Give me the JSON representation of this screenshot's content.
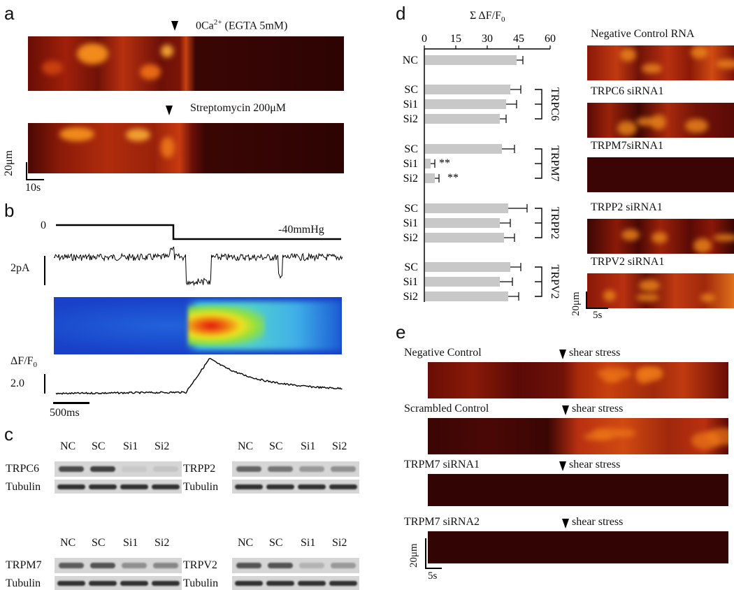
{
  "panel_a": {
    "letter": "a",
    "k1_label_pre": "0Ca",
    "k1_label_sup": "2+",
    "k1_label_post": " (EGTA 5mM)",
    "k2_label": "Streptomycin 200μM",
    "scale_y": "20μm",
    "scale_x": "10s"
  },
  "panel_b": {
    "letter": "b",
    "pressure_start": "0",
    "pressure_end": "-40mmHg",
    "current_scale": "2pA",
    "ratio_label": "ΔF/F",
    "ratio_sub": "0",
    "ratio_scale": "2.0",
    "time_scale": "500ms"
  },
  "panel_c": {
    "letter": "c",
    "columns": [
      "NC",
      "SC",
      "Si1",
      "Si2"
    ],
    "blots": [
      {
        "target": "TRPC6",
        "loading": "Tubulin",
        "levels": [
          0.8,
          0.85,
          0.08,
          0.1
        ]
      },
      {
        "target": "TRPP2",
        "loading": "Tubulin",
        "levels": [
          0.65,
          0.55,
          0.35,
          0.4
        ]
      },
      {
        "target": "TRPM7",
        "loading": "Tubulin",
        "levels": [
          0.7,
          0.75,
          0.4,
          0.45
        ]
      },
      {
        "target": "TRPV2",
        "loading": "Tubulin",
        "levels": [
          0.75,
          0.75,
          0.2,
          0.35
        ]
      }
    ]
  },
  "panel_d": {
    "letter": "d",
    "axis_title": "Σ ΔF/F",
    "axis_title_sub": "0",
    "ticks": [
      "0",
      "15",
      "30",
      "45",
      "60"
    ],
    "sig_mark": "**",
    "kymo_titles": [
      "Negative Control RNA",
      "TRPC6 siRNA1",
      "TRPM7siRNA1",
      "TRPP2 siRNA1",
      "TRPV2 siRNA1"
    ],
    "scale_y": "20μm",
    "scale_x": "5s"
  },
  "chart_data": {
    "type": "bar",
    "orientation": "horizontal",
    "xlim": [
      0,
      60
    ],
    "groups": [
      {
        "name": "",
        "categories": [
          "NC"
        ],
        "values": [
          44
        ],
        "errors": [
          3
        ]
      },
      {
        "name": "TRPC6",
        "categories": [
          "SC",
          "Si1",
          "Si2"
        ],
        "values": [
          41,
          39,
          36
        ],
        "errors": [
          5,
          5,
          3
        ]
      },
      {
        "name": "TRPM7",
        "categories": [
          "SC",
          "Si1",
          "Si2"
        ],
        "values": [
          37,
          3,
          5
        ],
        "errors": [
          6,
          2,
          2
        ]
      },
      {
        "name": "TRPP2",
        "categories": [
          "SC",
          "Si1",
          "Si2"
        ],
        "values": [
          40,
          36,
          38
        ],
        "errors": [
          9,
          5,
          5
        ]
      },
      {
        "name": "TRPV2",
        "categories": [
          "SC",
          "Si1",
          "Si2"
        ],
        "values": [
          41,
          36,
          40
        ],
        "errors": [
          5,
          6,
          5
        ]
      }
    ]
  },
  "panel_e": {
    "letter": "e",
    "rows": [
      {
        "label": "Negative Control",
        "stim": "shear stress"
      },
      {
        "label": "Scrambled Control",
        "stim": "shear stress"
      },
      {
        "label": "TRPM7 siRNA1",
        "stim": "shear stress"
      },
      {
        "label": "TRPM7 siRNA2",
        "stim": "shear stress"
      }
    ],
    "scale_y": "20μm",
    "scale_x": "5s"
  }
}
